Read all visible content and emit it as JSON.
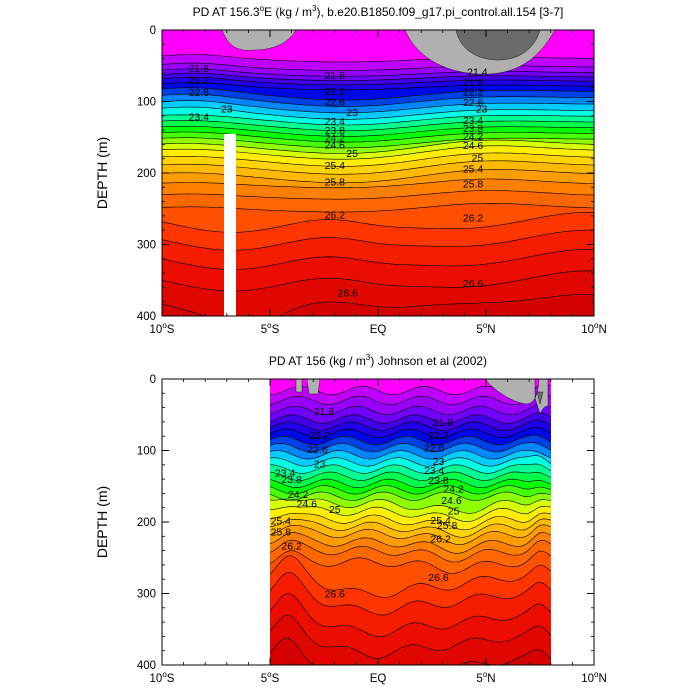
{
  "chart_data": [
    {
      "type": "contour",
      "title_prefix": "PD AT 156.3",
      "title_sup": "o",
      "title_mid": "E (kg / m",
      "title_sup2": "3",
      "title_suffix": "), b.e20.B1850.f09_g17.pi_control.all.154 [3-7]",
      "ylabel": "DEPTH (m)",
      "xlim": [
        -10,
        10
      ],
      "ylim": [
        400,
        0
      ],
      "x_ticks": [
        {
          "v": -10,
          "num": "10",
          "sup": "o",
          "hemi": "S"
        },
        {
          "v": -5,
          "num": "5",
          "sup": "o",
          "hemi": "S"
        },
        {
          "v": 0,
          "num": "EQ",
          "sup": "",
          "hemi": ""
        },
        {
          "v": 5,
          "num": "5",
          "sup": "o",
          "hemi": "N"
        },
        {
          "v": 10,
          "num": "10",
          "sup": "o",
          "hemi": "N"
        }
      ],
      "y_ticks": [
        "0",
        "100",
        "200",
        "300",
        "400"
      ],
      "data_range_x": [
        -10,
        10
      ],
      "levels_from": 21.4,
      "levels_step": 0.2,
      "levels_count": 28,
      "contour_labels": [
        {
          "text": "21.8",
          "x": -8.3,
          "y": 53
        },
        {
          "text": "22.2",
          "x": -8.3,
          "y": 70
        },
        {
          "text": "22.6",
          "x": -8.3,
          "y": 87
        },
        {
          "text": "23",
          "x": -7.0,
          "y": 110
        },
        {
          "text": "23.4",
          "x": -8.3,
          "y": 121
        },
        {
          "text": "21.8",
          "x": -2.0,
          "y": 63
        },
        {
          "text": "22.2",
          "x": -2.0,
          "y": 85
        },
        {
          "text": "22.6",
          "x": -2.0,
          "y": 100
        },
        {
          "text": "23",
          "x": -1.2,
          "y": 115
        },
        {
          "text": "23.4",
          "x": -2.0,
          "y": 127
        },
        {
          "text": "23.8",
          "x": -2.0,
          "y": 140
        },
        {
          "text": "24.2",
          "x": -2.0,
          "y": 150
        },
        {
          "text": "24.6",
          "x": -2.0,
          "y": 160
        },
        {
          "text": "25",
          "x": -1.2,
          "y": 172
        },
        {
          "text": "25.4",
          "x": -2.0,
          "y": 189
        },
        {
          "text": "25.8",
          "x": -2.0,
          "y": 212
        },
        {
          "text": "26.2",
          "x": -2.0,
          "y": 258
        },
        {
          "text": "26.6",
          "x": -1.4,
          "y": 367
        },
        {
          "text": "21.4",
          "x": 4.6,
          "y": 58
        },
        {
          "text": "21.8",
          "x": 4.4,
          "y": 73
        },
        {
          "text": "22.2",
          "x": 4.4,
          "y": 86
        },
        {
          "text": "22.6",
          "x": 4.4,
          "y": 101
        },
        {
          "text": "23",
          "x": 4.8,
          "y": 110
        },
        {
          "text": "23.4",
          "x": 4.4,
          "y": 126
        },
        {
          "text": "23.8",
          "x": 4.4,
          "y": 137
        },
        {
          "text": "24.2",
          "x": 4.4,
          "y": 148
        },
        {
          "text": "24.6",
          "x": 4.4,
          "y": 161
        },
        {
          "text": "25",
          "x": 4.6,
          "y": 178
        },
        {
          "text": "25.4",
          "x": 4.4,
          "y": 194
        },
        {
          "text": "25.8",
          "x": 4.4,
          "y": 215
        },
        {
          "text": "26.2",
          "x": 4.4,
          "y": 262
        },
        {
          "text": "26.6",
          "x": 4.4,
          "y": 354
        }
      ]
    },
    {
      "type": "contour",
      "title_prefix": "PD AT 156 (kg / m",
      "title_sup": "3",
      "title_suffix": ") Johnson et al (2002)",
      "ylabel": "DEPTH (m)",
      "xlim": [
        -10,
        10
      ],
      "ylim": [
        400,
        0
      ],
      "x_ticks": [
        {
          "v": -10,
          "num": "10",
          "sup": "o",
          "hemi": "S"
        },
        {
          "v": -5,
          "num": "5",
          "sup": "o",
          "hemi": "S"
        },
        {
          "v": 0,
          "num": "EQ",
          "sup": "",
          "hemi": ""
        },
        {
          "v": 5,
          "num": "5",
          "sup": "o",
          "hemi": "N"
        },
        {
          "v": 10,
          "num": "10",
          "sup": "o",
          "hemi": "N"
        }
      ],
      "y_ticks": [
        "0",
        "100",
        "200",
        "300",
        "400"
      ],
      "data_range_x": [
        -5,
        8
      ],
      "levels_from": 21.4,
      "levels_step": 0.2,
      "levels_count": 28,
      "contour_labels": [
        {
          "text": "21.8",
          "x": -2.5,
          "y": 45
        },
        {
          "text": "22.2",
          "x": -2.7,
          "y": 78
        },
        {
          "text": "22.6",
          "x": -2.8,
          "y": 98
        },
        {
          "text": "23",
          "x": -2.7,
          "y": 118
        },
        {
          "text": "23.4",
          "x": -4.3,
          "y": 131
        },
        {
          "text": "23.8",
          "x": -4.0,
          "y": 140
        },
        {
          "text": "24.2",
          "x": -3.7,
          "y": 161
        },
        {
          "text": "24.6",
          "x": -3.3,
          "y": 174
        },
        {
          "text": "25",
          "x": -2.0,
          "y": 182
        },
        {
          "text": "25.4",
          "x": -4.5,
          "y": 198
        },
        {
          "text": "25.8",
          "x": -4.5,
          "y": 213
        },
        {
          "text": "26.2",
          "x": -4.0,
          "y": 233
        },
        {
          "text": "26.6",
          "x": -2.0,
          "y": 300
        },
        {
          "text": "21.8",
          "x": 3.0,
          "y": 60
        },
        {
          "text": "22.2",
          "x": 2.8,
          "y": 78
        },
        {
          "text": "22.6",
          "x": 2.6,
          "y": 96
        },
        {
          "text": "23",
          "x": 2.8,
          "y": 115
        },
        {
          "text": "23.4",
          "x": 2.6,
          "y": 127
        },
        {
          "text": "23.8",
          "x": 2.8,
          "y": 141
        },
        {
          "text": "24.2",
          "x": 3.5,
          "y": 153
        },
        {
          "text": "24.6",
          "x": 3.4,
          "y": 169
        },
        {
          "text": "25",
          "x": 3.5,
          "y": 184
        },
        {
          "text": "25.4",
          "x": 2.9,
          "y": 197
        },
        {
          "text": "25.8",
          "x": 3.2,
          "y": 204
        },
        {
          "text": "26.2",
          "x": 2.9,
          "y": 223
        },
        {
          "text": "26.6",
          "x": 2.8,
          "y": 277
        }
      ]
    }
  ]
}
